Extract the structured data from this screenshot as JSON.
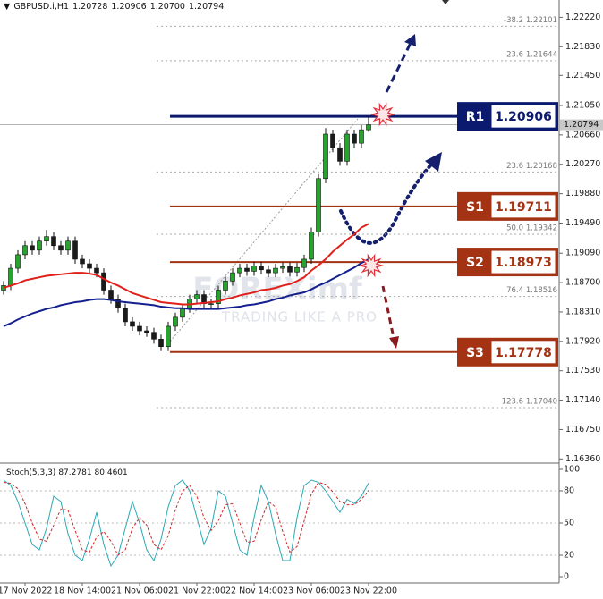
{
  "chart_data": [
    {
      "type": "candlestick",
      "symbol": "GBPUSD.i,H1",
      "ohlc_labels": [
        "1.20728",
        "1.20906",
        "1.20700",
        "1.20794"
      ],
      "watermark": {
        "brand": "FOREXimf",
        "tagline": "TRADING LIKE A PRO"
      },
      "categories": [
        null,
        null,
        null,
        "17 Nov 2022",
        null,
        null,
        null,
        null,
        null,
        null,
        null,
        "18 Nov 14:00",
        null,
        null,
        null,
        null,
        null,
        null,
        null,
        "21 Nov 06:00",
        null,
        null,
        null,
        null,
        null,
        null,
        null,
        "21 Nov 22:00",
        null,
        null,
        null,
        null,
        null,
        null,
        null,
        "22 Nov 14:00",
        null,
        null,
        null,
        null,
        null,
        null,
        null,
        "23 Nov 06:00",
        null,
        null,
        null,
        null,
        null,
        null,
        null,
        "23 Nov 22:00"
      ],
      "open": [
        1.186,
        1.1866,
        1.1889,
        1.1907,
        1.1919,
        1.1913,
        1.1925,
        1.1931,
        1.1919,
        1.1913,
        1.1925,
        1.1901,
        1.1895,
        1.1889,
        1.1883,
        1.186,
        1.1848,
        1.1836,
        1.1818,
        1.1812,
        1.1806,
        1.1804,
        1.1795,
        1.1785,
        1.1812,
        1.1824,
        1.1836,
        1.1848,
        1.1854,
        1.1842,
        1.1842,
        1.186,
        1.1872,
        1.1883,
        1.1889,
        1.1885,
        1.1892,
        1.1887,
        1.1883,
        1.1889,
        1.1891,
        1.1884,
        1.189,
        1.1901,
        1.1937,
        1.2008,
        1.2067,
        1.2049,
        1.2031,
        1.2067,
        1.2055,
        1.20728
      ],
      "high": [
        1.1872,
        1.1895,
        1.1913,
        1.1925,
        1.1925,
        1.1931,
        1.194,
        1.1937,
        1.1925,
        1.1931,
        1.1931,
        1.1907,
        1.1901,
        1.1895,
        1.1889,
        1.1866,
        1.1854,
        1.1842,
        1.1824,
        1.1818,
        1.1812,
        1.181,
        1.1801,
        1.1818,
        1.183,
        1.1842,
        1.1854,
        1.186,
        1.186,
        1.1848,
        1.1866,
        1.1878,
        1.1889,
        1.1895,
        1.1895,
        1.1898,
        1.1898,
        1.1893,
        1.1895,
        1.1897,
        1.1897,
        1.1896,
        1.1907,
        1.1943,
        1.2014,
        1.2075,
        1.2073,
        1.2055,
        1.2073,
        1.2073,
        1.2079,
        1.20906
      ],
      "low": [
        1.1854,
        1.186,
        1.1883,
        1.1901,
        1.1907,
        1.1907,
        1.1919,
        1.1913,
        1.1907,
        1.1907,
        1.1895,
        1.1889,
        1.1883,
        1.1877,
        1.1854,
        1.1842,
        1.183,
        1.1812,
        1.1806,
        1.18,
        1.1798,
        1.1789,
        1.1779,
        1.1779,
        1.1806,
        1.1818,
        1.183,
        1.1842,
        1.1836,
        1.1836,
        1.1836,
        1.1854,
        1.1866,
        1.1877,
        1.1879,
        1.1879,
        1.1881,
        1.1877,
        1.1877,
        1.1883,
        1.1878,
        1.1878,
        1.1884,
        1.1895,
        1.1931,
        1.2002,
        1.2043,
        1.2025,
        1.2025,
        1.2049,
        1.2049,
        1.207
      ],
      "close": [
        1.1866,
        1.1889,
        1.1907,
        1.1919,
        1.1913,
        1.1925,
        1.1931,
        1.1919,
        1.1913,
        1.1925,
        1.1901,
        1.1895,
        1.1889,
        1.1883,
        1.186,
        1.1848,
        1.1836,
        1.1818,
        1.1812,
        1.1806,
        1.1804,
        1.1795,
        1.1785,
        1.1812,
        1.1824,
        1.1836,
        1.1848,
        1.1854,
        1.1842,
        1.1842,
        1.186,
        1.1872,
        1.1883,
        1.1889,
        1.1885,
        1.1892,
        1.1887,
        1.1883,
        1.1889,
        1.1891,
        1.1884,
        1.189,
        1.1901,
        1.1937,
        1.2008,
        1.2067,
        1.2049,
        1.2031,
        1.2067,
        1.2055,
        1.20728,
        1.20794
      ],
      "up_color": "#27a32f",
      "down_color": "#1b1b1b",
      "series": [
        {
          "color": "#e0201b",
          "values": [
            1.1863,
            1.1866,
            1.1869,
            1.1873,
            1.1875,
            1.1877,
            1.1879,
            1.188,
            1.1881,
            1.1882,
            1.1883,
            1.1883,
            1.1882,
            1.188,
            1.1875,
            1.187,
            1.1866,
            1.1861,
            1.1856,
            1.1853,
            1.185,
            1.1847,
            1.1844,
            1.1843,
            1.1842,
            1.1841,
            1.1841,
            1.1842,
            1.1843,
            1.1844,
            1.1845,
            1.1848,
            1.185,
            1.1853,
            1.1855,
            1.1857,
            1.186,
            1.1861,
            1.1863,
            1.1866,
            1.1868,
            1.1872,
            1.1877,
            1.1886,
            1.1893,
            1.1901,
            1.1911,
            1.1919,
            1.1927,
            1.1934,
            1.1943,
            1.1948
          ]
        },
        {
          "color": "#14208f",
          "values": [
            1.1812,
            1.1816,
            1.1821,
            1.1825,
            1.1829,
            1.1832,
            1.1835,
            1.1837,
            1.184,
            1.1842,
            1.1844,
            1.1845,
            1.1847,
            1.1848,
            1.1848,
            1.1847,
            1.1845,
            1.1844,
            1.1843,
            1.1842,
            1.1841,
            1.184,
            1.1838,
            1.1837,
            1.1836,
            1.1836,
            1.1835,
            1.1835,
            1.1835,
            1.1835,
            1.1835,
            1.1836,
            1.1837,
            1.1838,
            1.184,
            1.1841,
            1.1843,
            1.1845,
            1.1848,
            1.185,
            1.1853,
            1.1855,
            1.1857,
            1.1861,
            1.1866,
            1.187,
            1.1875,
            1.188,
            1.1885,
            1.189,
            1.1896,
            1.1901
          ]
        }
      ],
      "current_price": {
        "value": 1.20794,
        "label": "1.20794"
      },
      "levels": [
        {
          "name": "R1",
          "value": 1.20906,
          "color": "#0b1a6e"
        },
        {
          "name": "S1",
          "value": 1.19711,
          "color": "#a33312"
        },
        {
          "name": "S2",
          "value": 1.18973,
          "color": "#a33312"
        },
        {
          "name": "S3",
          "value": 1.17778,
          "color": "#a33312"
        }
      ],
      "fib": [
        {
          "ratio": "-38.2",
          "price": 1.22101
        },
        {
          "ratio": "-23.6",
          "price": 1.21644
        },
        {
          "ratio": "23.6",
          "price": 1.20168
        },
        {
          "ratio": "50.0",
          "price": 1.19342
        },
        {
          "ratio": "76.4",
          "price": 1.18516
        },
        {
          "ratio": "123.6",
          "price": {
            "value": 1.1704,
            "label": "1.17040"
          }
        }
      ],
      "ylim": [
        1.1634,
        1.2245
      ],
      "yticks": [
        {
          "value": 1.2222,
          "label": "1.22220"
        },
        {
          "value": 1.2183,
          "label": "1.21830"
        },
        {
          "value": 1.2145,
          "label": "1.21450"
        },
        {
          "value": 1.2105,
          "label": "1.21050"
        },
        {
          "value": 1.2066,
          "label": "1.20660"
        },
        {
          "value": 1.2027,
          "label": "1.20270"
        },
        {
          "value": 1.1988,
          "label": "1.19880"
        },
        {
          "value": 1.1949,
          "label": "1.19490"
        },
        {
          "value": 1.1909,
          "label": "1.19090"
        },
        {
          "value": 1.187,
          "label": "1.18700"
        },
        {
          "value": 1.1831,
          "label": "1.18310"
        },
        {
          "value": 1.1792,
          "label": "1.17920"
        },
        {
          "value": 1.1753,
          "label": "1.17530"
        },
        {
          "value": 1.1714,
          "label": "1.17140"
        },
        {
          "value": 1.1675,
          "label": "1.16750"
        },
        {
          "value": 1.1636,
          "label": "1.16360"
        }
      ]
    },
    {
      "type": "line",
      "title": "Stoch(5,3,3)",
      "series": [
        {
          "color": "#2aa9b5",
          "values": [
            90,
            85,
            70,
            50,
            30,
            25,
            45,
            75,
            70,
            40,
            20,
            15,
            35,
            60,
            30,
            10,
            20,
            45,
            70,
            50,
            25,
            15,
            35,
            65,
            85,
            90,
            80,
            55,
            30,
            45,
            80,
            75,
            50,
            25,
            20,
            55,
            85,
            70,
            40,
            15,
            15,
            55,
            85,
            90,
            88,
            80,
            70,
            60,
            72,
            68,
            75,
            87.2781
          ]
        },
        {
          "color": "#d4262b",
          "dashed": true,
          "values": [
            88,
            87,
            82,
            68,
            50,
            35,
            33,
            48,
            63,
            62,
            43,
            25,
            23,
            37,
            42,
            33,
            20,
            25,
            45,
            55,
            48,
            30,
            25,
            38,
            62,
            80,
            85,
            75,
            55,
            43,
            52,
            67,
            68,
            50,
            32,
            33,
            53,
            70,
            65,
            42,
            23,
            28,
            52,
            77,
            88,
            86,
            79,
            70,
            67,
            67,
            72,
            80.4601
          ]
        }
      ],
      "ylim": [
        0,
        100
      ],
      "yticks": [
        100,
        80,
        50,
        20,
        0
      ]
    }
  ]
}
